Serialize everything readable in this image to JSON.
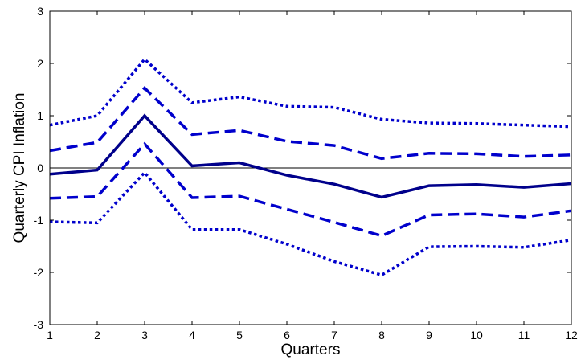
{
  "chart_data": {
    "type": "line",
    "xlabel": "Quarters",
    "ylabel": "Quarterly CPI Inflation",
    "xlim": [
      1,
      12
    ],
    "ylim": [
      -3,
      3
    ],
    "x_ticks": [
      "1",
      "2",
      "3",
      "4",
      "5",
      "6",
      "7",
      "8",
      "9",
      "10",
      "11",
      "12"
    ],
    "y_ticks": [
      "-3",
      "-2",
      "-1",
      "0",
      "1",
      "2",
      "3"
    ],
    "x": [
      1,
      2,
      3,
      4,
      5,
      6,
      7,
      8,
      9,
      10,
      11,
      12
    ],
    "zero_line": true,
    "grid": false,
    "series": [
      {
        "style": "dotted",
        "color": "#0000cc",
        "values": [
          0.82,
          1.0,
          2.08,
          1.25,
          1.36,
          1.18,
          1.16,
          0.93,
          0.86,
          0.85,
          0.82,
          0.79
        ]
      },
      {
        "style": "dashed",
        "color": "#0000cc",
        "values": [
          0.33,
          0.49,
          1.53,
          0.64,
          0.72,
          0.51,
          0.43,
          0.18,
          0.28,
          0.27,
          0.22,
          0.25
        ]
      },
      {
        "style": "solid",
        "color": "#00008b",
        "values": [
          -0.12,
          -0.04,
          1.0,
          0.04,
          0.1,
          -0.14,
          -0.31,
          -0.56,
          -0.34,
          -0.32,
          -0.37,
          -0.3
        ]
      },
      {
        "style": "dashed",
        "color": "#0000cc",
        "values": [
          -0.58,
          -0.55,
          0.46,
          -0.57,
          -0.54,
          -0.79,
          -1.04,
          -1.3,
          -0.9,
          -0.88,
          -0.94,
          -0.82
        ]
      },
      {
        "style": "dotted",
        "color": "#0000cc",
        "values": [
          -1.03,
          -1.05,
          -0.09,
          -1.18,
          -1.18,
          -1.46,
          -1.79,
          -2.05,
          -1.51,
          -1.5,
          -1.52,
          -1.38
        ]
      }
    ]
  }
}
